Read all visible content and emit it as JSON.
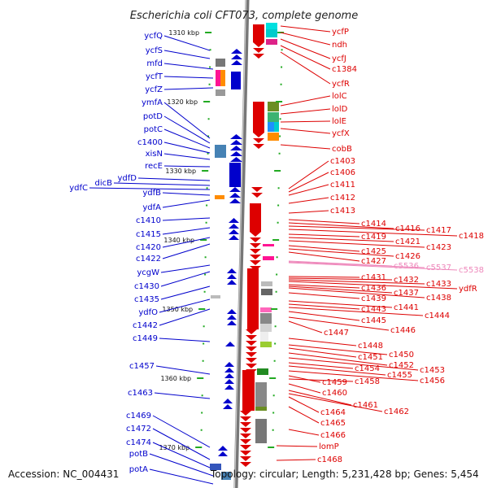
{
  "title": "Escherichia coli CFT073, complete genome",
  "footer": {
    "accession": "Accession: NC_004431",
    "summary": "Topology: circular; Length: 5,231,428 bp; Genes: 5,454"
  },
  "colors": {
    "left_gene": "#0000cc",
    "right_gene": "#dd0000",
    "pseudo_gene": "#ee88bb",
    "backbone": "#888888",
    "tick": "#22aa22"
  },
  "scale": {
    "unit": "kbp",
    "ticks": [
      {
        "kbp": 1310,
        "label": "1310 kbp"
      },
      {
        "kbp": 1320,
        "label": "1320 kbp"
      },
      {
        "kbp": 1330,
        "label": "1330 kbp"
      },
      {
        "kbp": 1340,
        "label": "1340 kbp"
      },
      {
        "kbp": 1350,
        "label": "1350 kbp"
      },
      {
        "kbp": 1360,
        "label": "1360 kbp"
      },
      {
        "kbp": 1370,
        "label": "1370 kbp"
      }
    ]
  },
  "left_genes": [
    "ycfQ",
    "ycfS",
    "mfd",
    "ycfT",
    "ycfZ",
    "ymfA",
    "potD",
    "potC",
    "c1400",
    "xisN",
    "recE",
    "ydfD",
    "dicB",
    "ydfC",
    "ydfB",
    "ydfA",
    "c1410",
    "c1415",
    "c1420",
    "c1422",
    "ycgW",
    "c1430",
    "c1435",
    "ydfO",
    "c1442",
    "c1449",
    "c1457",
    "c1463",
    "c1469",
    "c1472",
    "c1474",
    "potB",
    "potA"
  ],
  "right_genes": [
    "ycfP",
    "ndh",
    "ycfJ",
    "c1384",
    "ycfR",
    "lolC",
    "lolD",
    "lolE",
    "ycfX",
    "cobB",
    "c1403",
    "c1406",
    "c1411",
    "c1412",
    "c1413",
    "c1414",
    "c1416",
    "c1417",
    "c1418",
    "c1419",
    "c1421",
    "c1423",
    "c1425",
    "c1426",
    "c1427",
    "c5536",
    "c5537",
    "c5538",
    "c1431",
    "c1432",
    "c1433",
    "ydfR",
    "c1436",
    "c1437",
    "c1438",
    "c1439",
    "c1441",
    "c1443",
    "c1444",
    "c1445",
    "c1446",
    "c1447",
    "c1448",
    "c1450",
    "c1451",
    "c1452",
    "c1453",
    "c1454",
    "c1455",
    "c1456",
    "c1459",
    "c1458",
    "c1460",
    "c1461",
    "c1462",
    "c1464",
    "c1465",
    "c1466",
    "lomP",
    "c1468"
  ]
}
